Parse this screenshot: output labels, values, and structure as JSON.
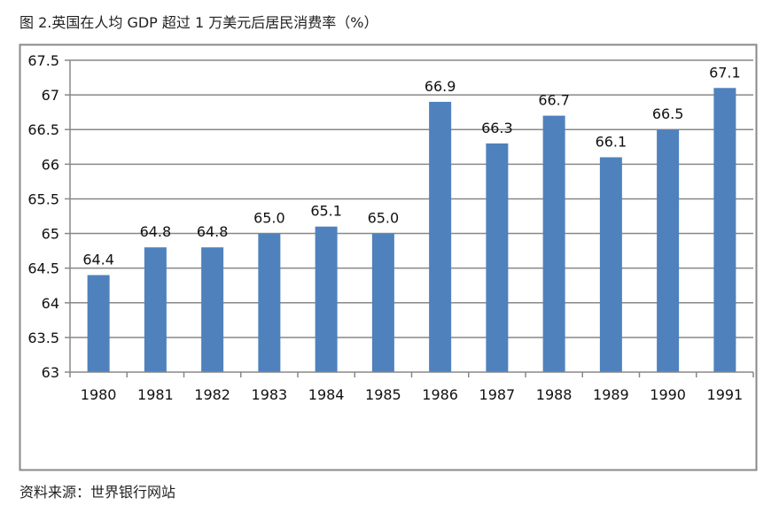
{
  "title": "图 2.英国在人均 GDP 超过 1 万美元后居民消费率（%）",
  "source": "资料来源：世界银行网站",
  "chart_data": {
    "type": "bar",
    "title": "图 2.英国在人均 GDP 超过 1 万美元后居民消费率（%）",
    "xlabel": "",
    "ylabel": "",
    "categories": [
      "1980",
      "1981",
      "1982",
      "1983",
      "1984",
      "1985",
      "1986",
      "1987",
      "1988",
      "1989",
      "1990",
      "1991"
    ],
    "values": [
      64.4,
      64.8,
      64.8,
      65.0,
      65.1,
      65.0,
      66.9,
      66.3,
      66.7,
      66.1,
      66.5,
      67.1
    ],
    "data_labels": [
      "64.4",
      "64.8",
      "64.8",
      "65.0",
      "65.1",
      "65.0",
      "66.9",
      "66.3",
      "66.7",
      "66.1",
      "66.5",
      "67.1"
    ],
    "ylim": [
      63,
      67.5
    ],
    "yticks": [
      "63",
      "63.5",
      "64",
      "64.5",
      "65",
      "65.5",
      "66",
      "66.5",
      "67",
      "67.5"
    ],
    "grid": true,
    "legend": "none",
    "bar_color": "#4F81BD"
  }
}
